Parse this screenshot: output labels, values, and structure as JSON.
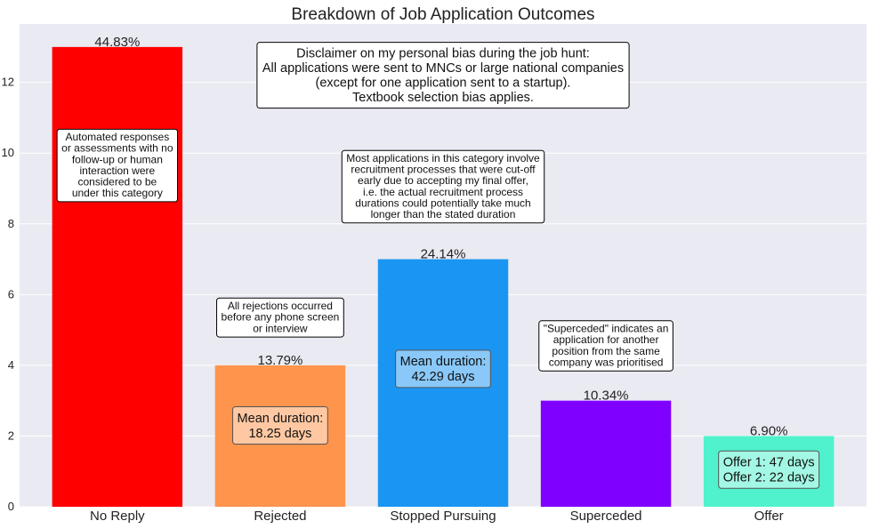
{
  "chart_data": {
    "type": "bar",
    "title": "Breakdown of Job Application Outcomes",
    "xlabel": "",
    "ylabel": "",
    "ylim": [
      0,
      13.65
    ],
    "yticks": [
      0,
      2,
      4,
      6,
      8,
      10,
      12
    ],
    "grid": true,
    "categories": [
      "No Reply",
      "Rejected",
      "Stopped Pursuing",
      "Superceded",
      "Offer"
    ],
    "values": [
      13,
      4,
      7,
      3,
      2
    ],
    "value_labels": [
      "44.83%",
      "13.79%",
      "24.14%",
      "10.34%",
      "6.90%"
    ],
    "colors": [
      "#ff0000",
      "#ff944d",
      "#1a96f2",
      "#8000ff",
      "#4ff2cc"
    ],
    "inbar_labels": [
      null,
      {
        "lines": [
          "Mean duration:",
          "18.25 days"
        ],
        "fill": "#ffcaa6"
      },
      {
        "lines": [
          "Mean duration:",
          "42.29 days"
        ],
        "fill": "#8fcaf8"
      },
      null,
      {
        "lines": [
          "Offer 1:  47 days",
          "Offer 2:  22 days"
        ],
        "fill": "#a6f8e5"
      }
    ],
    "annotations": [
      {
        "bar": 0,
        "lines": [
          "Automated responses",
          "or assessments with no",
          "follow-up or human",
          "interaction were",
          "considered to be",
          "under this category"
        ]
      },
      {
        "bar": 1,
        "lines": [
          "All rejections occurred",
          "before any phone screen",
          "or interview"
        ]
      },
      {
        "bar": 2,
        "lines": [
          "Most applications in this category involve",
          "recruitment processes that were cut-off",
          "early due to accepting my final offer,",
          "i.e. the actual recruitment process",
          "durations could potentially take much",
          "longer than the stated duration"
        ]
      },
      {
        "bar": 3,
        "lines": [
          "\"Superceded\" indicates an",
          "application for another",
          "position from the same",
          "company was prioritised"
        ]
      }
    ],
    "disclaimer": {
      "lines": [
        "Disclaimer on my personal bias during the job hunt:",
        "All applications were sent to MNCs or large national companies",
        "(except for one application sent to a startup).",
        "Textbook selection bias applies."
      ]
    }
  }
}
